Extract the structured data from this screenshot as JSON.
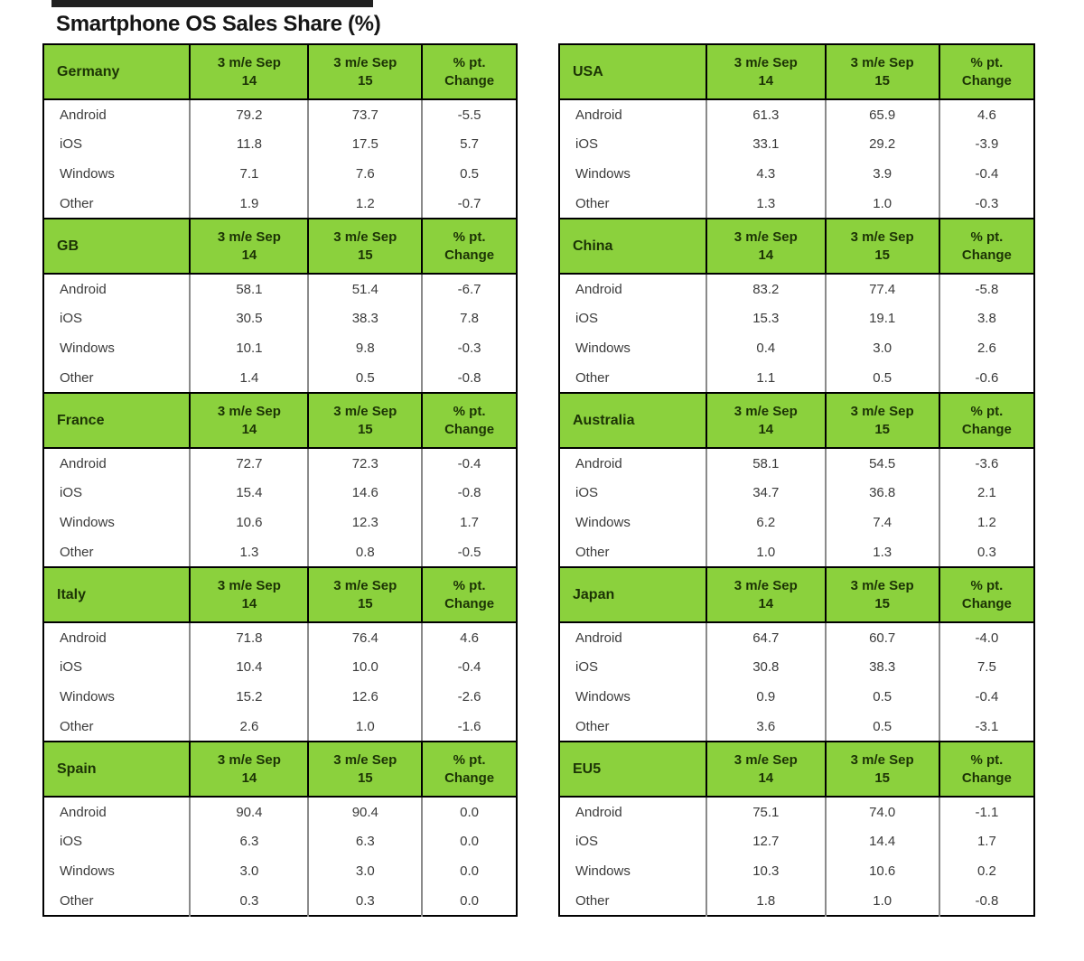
{
  "page": {
    "title": "Smartphone OS Sales Share (%)"
  },
  "chart_data": {
    "type": "table",
    "title": "Smartphone OS Sales Share (%)",
    "column_headers": [
      "3 m/e Sep\n14",
      "3 m/e Sep\n15",
      "% pt.\nChange"
    ],
    "row_labels": [
      "Android",
      "iOS",
      "Windows",
      "Other"
    ],
    "tables": [
      {
        "region": "Germany",
        "values": [
          [
            "79.2",
            "73.7",
            "-5.5"
          ],
          [
            "11.8",
            "17.5",
            "5.7"
          ],
          [
            "7.1",
            "7.6",
            "0.5"
          ],
          [
            "1.9",
            "1.2",
            "-0.7"
          ]
        ]
      },
      {
        "region": "USA",
        "values": [
          [
            "61.3",
            "65.9",
            "4.6"
          ],
          [
            "33.1",
            "29.2",
            "-3.9"
          ],
          [
            "4.3",
            "3.9",
            "-0.4"
          ],
          [
            "1.3",
            "1.0",
            "-0.3"
          ]
        ]
      },
      {
        "region": "GB",
        "values": [
          [
            "58.1",
            "51.4",
            "-6.7"
          ],
          [
            "30.5",
            "38.3",
            "7.8"
          ],
          [
            "10.1",
            "9.8",
            "-0.3"
          ],
          [
            "1.4",
            "0.5",
            "-0.8"
          ]
        ]
      },
      {
        "region": "China",
        "values": [
          [
            "83.2",
            "77.4",
            "-5.8"
          ],
          [
            "15.3",
            "19.1",
            "3.8"
          ],
          [
            "0.4",
            "3.0",
            "2.6"
          ],
          [
            "1.1",
            "0.5",
            "-0.6"
          ]
        ]
      },
      {
        "region": "France",
        "values": [
          [
            "72.7",
            "72.3",
            "-0.4"
          ],
          [
            "15.4",
            "14.6",
            "-0.8"
          ],
          [
            "10.6",
            "12.3",
            "1.7"
          ],
          [
            "1.3",
            "0.8",
            "-0.5"
          ]
        ]
      },
      {
        "region": "Australia",
        "values": [
          [
            "58.1",
            "54.5",
            "-3.6"
          ],
          [
            "34.7",
            "36.8",
            "2.1"
          ],
          [
            "6.2",
            "7.4",
            "1.2"
          ],
          [
            "1.0",
            "1.3",
            "0.3"
          ]
        ]
      },
      {
        "region": "Italy",
        "values": [
          [
            "71.8",
            "76.4",
            "4.6"
          ],
          [
            "10.4",
            "10.0",
            "-0.4"
          ],
          [
            "15.2",
            "12.6",
            "-2.6"
          ],
          [
            "2.6",
            "1.0",
            "-1.6"
          ]
        ]
      },
      {
        "region": "Japan",
        "values": [
          [
            "64.7",
            "60.7",
            "-4.0"
          ],
          [
            "30.8",
            "38.3",
            "7.5"
          ],
          [
            "0.9",
            "0.5",
            "-0.4"
          ],
          [
            "3.6",
            "0.5",
            "-3.1"
          ]
        ]
      },
      {
        "region": "Spain",
        "values": [
          [
            "90.4",
            "90.4",
            "0.0"
          ],
          [
            "6.3",
            "6.3",
            "0.0"
          ],
          [
            "3.0",
            "3.0",
            "0.0"
          ],
          [
            "0.3",
            "0.3",
            "0.0"
          ]
        ]
      },
      {
        "region": "EU5",
        "values": [
          [
            "75.1",
            "74.0",
            "-1.1"
          ],
          [
            "12.7",
            "14.4",
            "1.7"
          ],
          [
            "10.3",
            "10.6",
            "0.2"
          ],
          [
            "1.8",
            "1.0",
            "-0.8"
          ]
        ]
      }
    ],
    "layout": {
      "left_column_regions": [
        "Germany",
        "GB",
        "France",
        "Italy",
        "Spain"
      ],
      "right_column_regions": [
        "USA",
        "China",
        "Australia",
        "Japan",
        "EU5"
      ],
      "grid": "two columns of five stacked tables",
      "legend_position": "none",
      "gridlines": "table borders only"
    },
    "colors": {
      "header_green": "#8bd13d",
      "header_text": "#1c3305",
      "body_text": "#3b3b3b",
      "border_dark": "#000000",
      "border_gray": "#8a8a8a"
    }
  }
}
